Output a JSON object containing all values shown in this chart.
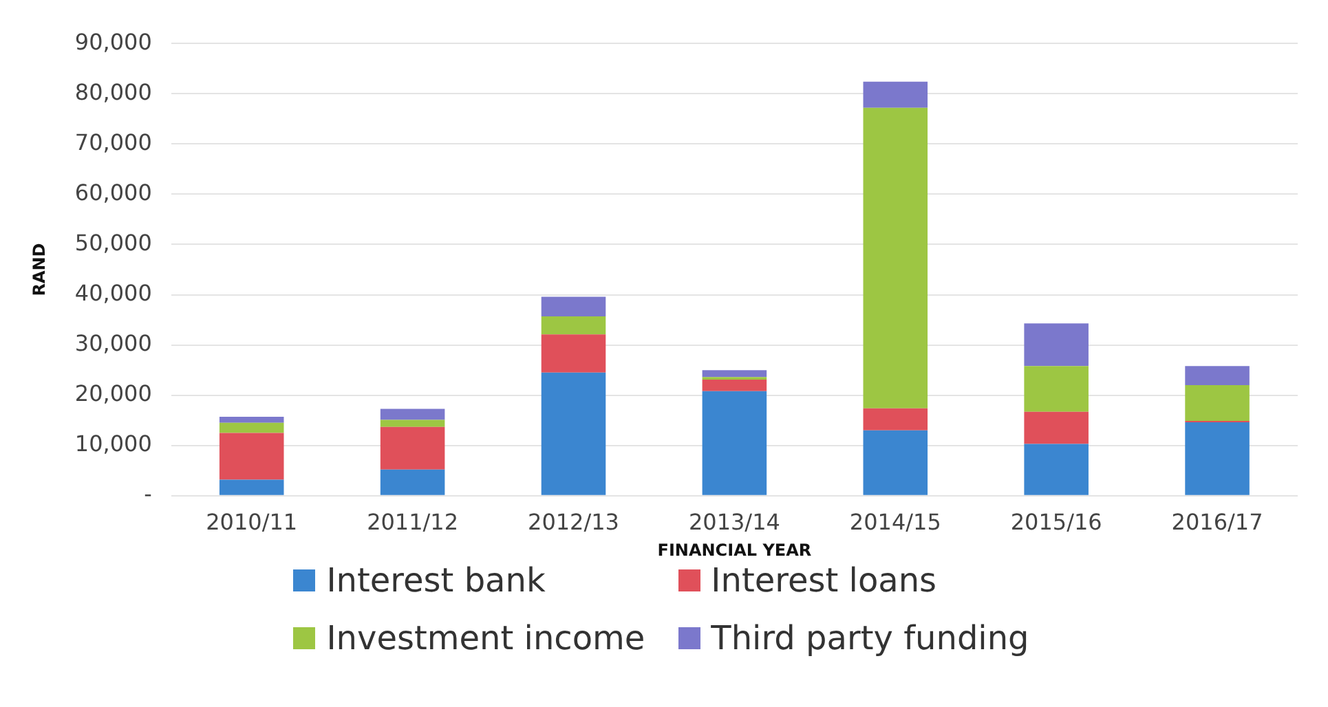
{
  "chart_data": {
    "type": "bar",
    "stacked": true,
    "xlabel": "FINANCIAL YEAR",
    "ylabel": "RAND",
    "categories": [
      "2010/11",
      "2011/12",
      "2012/13",
      "2013/14",
      "2014/15",
      "2015/16",
      "2016/17"
    ],
    "series": [
      {
        "name": "Interest bank",
        "color": "#3b86d0",
        "values": [
          3200,
          5200,
          24500,
          20800,
          13000,
          10300,
          14600
        ]
      },
      {
        "name": "Interest loans",
        "color": "#e0505a",
        "values": [
          9300,
          8500,
          7600,
          2300,
          4400,
          6400,
          300
        ]
      },
      {
        "name": "Investment income",
        "color": "#9dc643",
        "values": [
          2000,
          1400,
          3600,
          500,
          59800,
          9100,
          7100
        ]
      },
      {
        "name": "Third party funding",
        "color": "#7b78cc",
        "values": [
          1200,
          2200,
          3900,
          1400,
          5200,
          8500,
          3800
        ]
      }
    ],
    "ylim": [
      0,
      90000
    ],
    "yticks": [
      {
        "value": 0,
        "label": "-"
      },
      {
        "value": 10000,
        "label": "10,000"
      },
      {
        "value": 20000,
        "label": "20,000"
      },
      {
        "value": 30000,
        "label": "30,000"
      },
      {
        "value": 40000,
        "label": "40,000"
      },
      {
        "value": 50000,
        "label": "50,000"
      },
      {
        "value": 60000,
        "label": "60,000"
      },
      {
        "value": 70000,
        "label": "70,000"
      },
      {
        "value": 80000,
        "label": "80,000"
      },
      {
        "value": 90000,
        "label": "90,000"
      }
    ],
    "grid": "y",
    "legend": "bottom"
  }
}
